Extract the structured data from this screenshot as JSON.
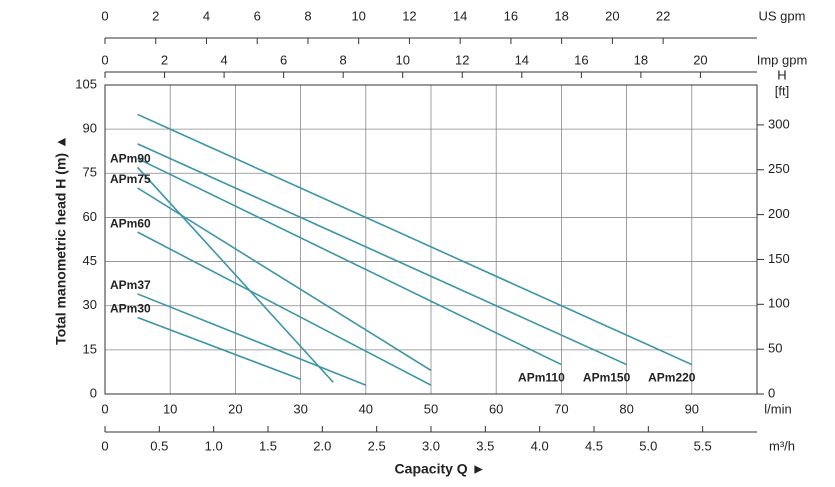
{
  "chart_data": {
    "type": "line",
    "ylabel": "Total manometric head H (m)  ▲",
    "xlabel": "Capacity Q   ►",
    "xunit": "l/min",
    "xlim": [
      0,
      100
    ],
    "xticks": [
      0,
      10,
      20,
      30,
      40,
      50,
      60,
      70,
      80,
      90
    ],
    "ylim": [
      0,
      105
    ],
    "yticks": [
      0,
      15,
      30,
      45,
      60,
      75,
      90,
      105
    ],
    "y2label": [
      "H",
      "[ft]"
    ],
    "y2lim": [
      0,
      344.5
    ],
    "y2ticks": [
      0,
      50,
      100,
      150,
      200,
      250,
      300
    ],
    "grid": true,
    "secondary_x": [
      {
        "label": "US gpm",
        "xlim": [
          0,
          25.7
        ],
        "xticks": [
          0,
          2,
          4,
          6,
          8,
          10,
          12,
          14,
          16,
          18,
          20,
          22
        ]
      },
      {
        "label": "Imp gpm",
        "xlim": [
          0,
          21.9
        ],
        "xticks": [
          0,
          2,
          4,
          6,
          8,
          10,
          12,
          14,
          16,
          18,
          20
        ]
      },
      {
        "label": "m³/h",
        "xlim": [
          0,
          6
        ],
        "xticks": [
          0,
          0.5,
          {
            "value": 1,
            "label": "1.0"
          },
          1.5,
          {
            "value": 2,
            "label": "2.0"
          },
          2.5,
          {
            "value": 3,
            "label": "3.0"
          },
          3.5,
          {
            "value": 4,
            "label": "4.0"
          },
          4.5,
          {
            "value": 5,
            "label": "5.0"
          },
          5.5
        ]
      }
    ],
    "series": [
      {
        "name": "APm220",
        "color": "#3a95a8",
        "x": [
          5,
          90
        ],
        "values": [
          95,
          10
        ]
      },
      {
        "name": "APm150",
        "color": "#3a95a8",
        "x": [
          5,
          80
        ],
        "values": [
          85,
          10
        ]
      },
      {
        "name": "APm110",
        "color": "#3a95a8",
        "x": [
          5,
          70
        ],
        "values": [
          80,
          10
        ]
      },
      {
        "name": "APm90",
        "color": "#3a95a8",
        "x": [
          5,
          35
        ],
        "values": [
          77,
          4
        ]
      },
      {
        "name": "APm75",
        "color": "#3a95a8",
        "x": [
          5,
          50
        ],
        "values": [
          70,
          8
        ]
      },
      {
        "name": "APm60",
        "color": "#3a95a8",
        "x": [
          5,
          50
        ],
        "values": [
          55,
          3
        ]
      },
      {
        "name": "APm37",
        "color": "#3a95a8",
        "x": [
          5,
          40
        ],
        "values": [
          34,
          3
        ]
      },
      {
        "name": "APm30",
        "color": "#3a95a8",
        "x": [
          5,
          30
        ],
        "values": [
          26,
          5
        ]
      }
    ]
  }
}
